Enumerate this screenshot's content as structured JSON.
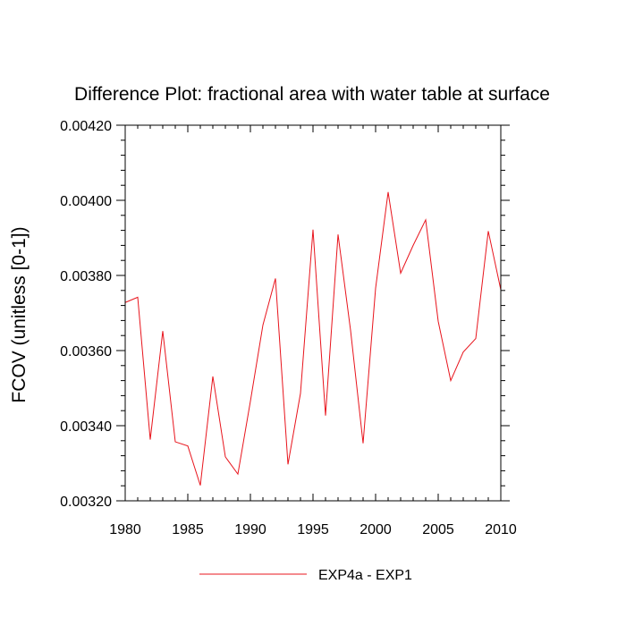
{
  "chart_data": {
    "type": "line",
    "title": "Difference Plot: fractional area with water table at surface",
    "xlabel": "",
    "ylabel": "FCOV  (unitless [0-1])",
    "xlim": [
      1980,
      2010
    ],
    "ylim": [
      0.0032,
      0.0042
    ],
    "xticks": [
      1980,
      1985,
      1990,
      1995,
      2000,
      2005,
      2010
    ],
    "xtick_labels": [
      "1980",
      "1985",
      "1990",
      "1995",
      "2000",
      "2005",
      "2010"
    ],
    "yticks": [
      0.0032,
      0.0034,
      0.0036,
      0.0038,
      0.004,
      0.0042
    ],
    "ytick_labels": [
      "0.00320",
      "0.00340",
      "0.00360",
      "0.00380",
      "0.00400",
      "0.00420"
    ],
    "grid": false,
    "legend_position": "bottom-center",
    "series": [
      {
        "name": "EXP4a - EXP1",
        "color": "#e8141c",
        "x": [
          1980,
          1981,
          1982,
          1983,
          1984,
          1985,
          1986,
          1987,
          1988,
          1989,
          1990,
          1991,
          1992,
          1993,
          1994,
          1995,
          1996,
          1997,
          1998,
          1999,
          2000,
          2001,
          2002,
          2003,
          2004,
          2005,
          2006,
          2007,
          2008,
          2009,
          2010
        ],
        "values": [
          0.003728,
          0.003742,
          0.003363,
          0.003652,
          0.003357,
          0.003346,
          0.003241,
          0.003531,
          0.003317,
          0.003271,
          0.003465,
          0.003668,
          0.003792,
          0.003297,
          0.003486,
          0.003922,
          0.003427,
          0.003909,
          0.003654,
          0.003353,
          0.003766,
          0.004022,
          0.003806,
          0.00388,
          0.003948,
          0.003678,
          0.00352,
          0.003596,
          0.003632,
          0.003918,
          0.003762
        ]
      }
    ]
  }
}
